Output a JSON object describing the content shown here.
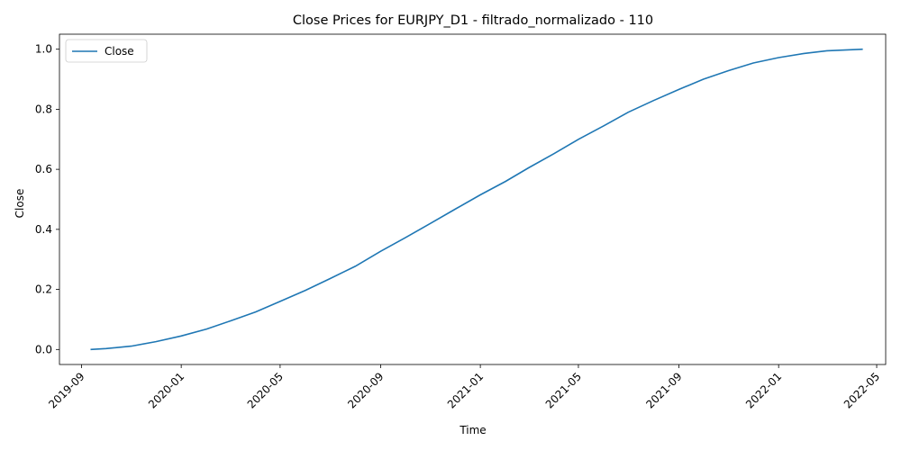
{
  "chart_data": {
    "type": "line",
    "title": "Close Prices for EURJPY_D1 - filtrado_normalizado - 110",
    "xlabel": "Time",
    "ylabel": "Close",
    "x_ticks": [
      "2019-09",
      "2020-01",
      "2020-05",
      "2020-09",
      "2021-01",
      "2021-05",
      "2021-09",
      "2022-01",
      "2022-05"
    ],
    "y_ticks": [
      "0.0",
      "0.2",
      "0.4",
      "0.6",
      "0.8",
      "1.0"
    ],
    "xlim": [
      "2019-08-05",
      "2022-05-12"
    ],
    "ylim": [
      -0.05,
      1.05
    ],
    "grid": false,
    "legend_position": "upper-left",
    "series": [
      {
        "name": "Close",
        "color": "#1f77b4",
        "x": [
          "2019-09-12",
          "2019-10-01",
          "2019-11-01",
          "2019-12-01",
          "2020-01-01",
          "2020-02-01",
          "2020-03-01",
          "2020-04-01",
          "2020-05-01",
          "2020-06-01",
          "2020-07-01",
          "2020-08-01",
          "2020-09-01",
          "2020-10-01",
          "2020-11-01",
          "2020-12-01",
          "2021-01-01",
          "2021-02-01",
          "2021-03-01",
          "2021-04-01",
          "2021-05-01",
          "2021-06-01",
          "2021-07-01",
          "2021-08-01",
          "2021-09-01",
          "2021-10-01",
          "2021-11-01",
          "2021-12-01",
          "2022-01-01",
          "2022-02-01",
          "2022-03-01",
          "2022-04-14"
        ],
        "y": [
          0.0,
          0.003,
          0.011,
          0.026,
          0.045,
          0.068,
          0.095,
          0.125,
          0.16,
          0.197,
          0.236,
          0.277,
          0.327,
          0.372,
          0.42,
          0.467,
          0.515,
          0.56,
          0.605,
          0.652,
          0.7,
          0.745,
          0.79,
          0.829,
          0.866,
          0.9,
          0.929,
          0.954,
          0.972,
          0.986,
          0.995,
          1.0
        ]
      }
    ]
  }
}
